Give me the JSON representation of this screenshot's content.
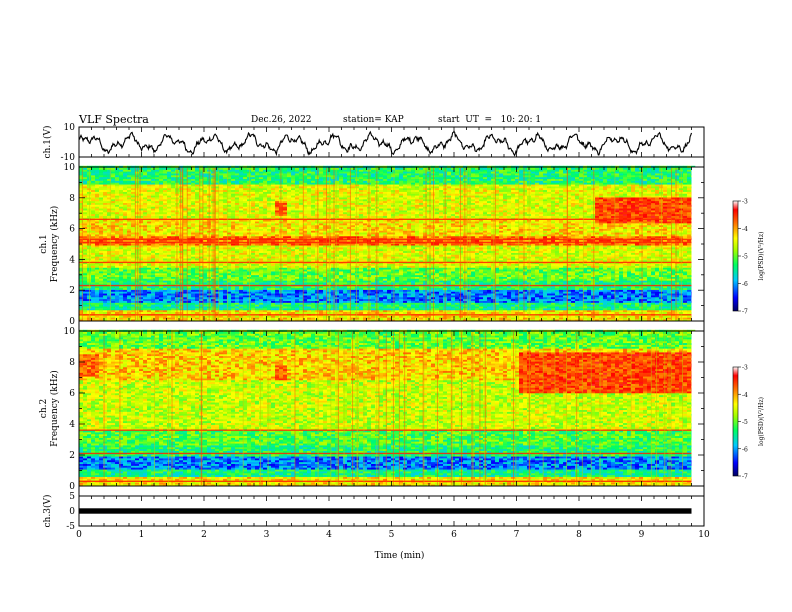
{
  "header": {
    "title": "VLF Spectra",
    "date": "Dec.26, 2022",
    "station": "station= KAP",
    "start_ut": "start  UT  =   10: 20: 1"
  },
  "chart_data": [
    {
      "type": "line",
      "name": "ch1-waveform",
      "ylabel": "ch.1(V)",
      "ylim": [
        -10,
        10
      ],
      "yticks": [
        "10",
        "-10"
      ],
      "xlim": [
        0,
        10
      ],
      "x_max_data": 9.8,
      "description_levels": "oscillating waveform between about -7 and 7 V",
      "color": "#000000"
    },
    {
      "type": "heatmap",
      "name": "ch1-spectrogram",
      "ylabel": "ch.1\nFrequency (kHz)",
      "ylabel_line1": "ch.1",
      "ylabel_line2": "Frequency (kHz)",
      "ylim": [
        0,
        10
      ],
      "yticks": [
        "0",
        "2",
        "4",
        "6",
        "8",
        "10"
      ],
      "xlim": [
        0,
        10
      ],
      "x_max_data": 9.8,
      "bands": [
        {
          "f_from": 0.0,
          "f_to": 0.7,
          "level": -4.3
        },
        {
          "f_from": 0.7,
          "f_to": 1.2,
          "level": -5.4
        },
        {
          "f_from": 1.2,
          "f_to": 2.0,
          "level": -6.1
        },
        {
          "f_from": 2.0,
          "f_to": 2.6,
          "level": -5.3
        },
        {
          "f_from": 2.6,
          "f_to": 3.4,
          "level": -5.0
        },
        {
          "f_from": 3.4,
          "f_to": 4.9,
          "level": -4.5
        },
        {
          "f_from": 4.9,
          "f_to": 5.5,
          "level": -3.8
        },
        {
          "f_from": 5.5,
          "f_to": 6.5,
          "level": -4.3
        },
        {
          "f_from": 6.5,
          "f_to": 8.8,
          "level": -4.5
        },
        {
          "f_from": 8.8,
          "f_to": 10.0,
          "level": -5.3
        }
      ],
      "lines_khz": [
        5.1,
        5.3,
        3.8,
        6.6,
        2.3,
        0.4
      ],
      "hotspots": [
        {
          "t_from": 8.2,
          "t_to": 9.8,
          "f_from": 6.3,
          "f_to": 8.0,
          "level": -3.6
        },
        {
          "t_from": 3.1,
          "t_to": 3.3,
          "f_from": 6.8,
          "f_to": 7.8,
          "level": -3.8
        }
      ],
      "colorbar": {
        "label": "log(PSD)(V²/Hz)",
        "range": [
          -7,
          -3
        ],
        "ticks": [
          "-3",
          "-4",
          "-5",
          "-6",
          "-7"
        ],
        "colors": [
          "#000080",
          "#0000ff",
          "#00bfff",
          "#00ff80",
          "#80ff00",
          "#ffff00",
          "#ff8000",
          "#ff0000",
          "#ffffff"
        ]
      }
    },
    {
      "type": "heatmap",
      "name": "ch2-spectrogram",
      "ylabel_line1": "ch.2",
      "ylabel_line2": "Frequency (kHz)",
      "ylim": [
        0,
        10
      ],
      "yticks": [
        "0",
        "2",
        "4",
        "6",
        "8",
        "10"
      ],
      "xlim": [
        0,
        10
      ],
      "x_max_data": 9.8,
      "bands": [
        {
          "f_from": 0.0,
          "f_to": 0.6,
          "level": -4.3
        },
        {
          "f_from": 0.6,
          "f_to": 1.0,
          "level": -5.4
        },
        {
          "f_from": 1.0,
          "f_to": 1.9,
          "level": -6.1
        },
        {
          "f_from": 1.9,
          "f_to": 2.6,
          "level": -5.3
        },
        {
          "f_from": 2.6,
          "f_to": 3.6,
          "level": -5.1
        },
        {
          "f_from": 3.6,
          "f_to": 6.8,
          "level": -4.6
        },
        {
          "f_from": 6.8,
          "f_to": 8.8,
          "level": -4.2
        },
        {
          "f_from": 8.8,
          "f_to": 10.0,
          "level": -5.0
        }
      ],
      "lines_khz": [
        3.6,
        2.1,
        0.3
      ],
      "hotspots": [
        {
          "t_from": 7.0,
          "t_to": 9.8,
          "f_from": 6.0,
          "f_to": 8.6,
          "level": -3.6
        },
        {
          "t_from": 3.1,
          "t_to": 3.3,
          "f_from": 6.8,
          "f_to": 7.8,
          "level": -3.8
        },
        {
          "t_from": 0.0,
          "t_to": 0.3,
          "f_from": 7.0,
          "f_to": 8.5,
          "level": -3.8
        }
      ],
      "colorbar": {
        "label": "log(PSD)(V²/Hz)",
        "range": [
          -7,
          -3
        ],
        "ticks": [
          "-3",
          "-4",
          "-5",
          "-6",
          "-7"
        ]
      }
    },
    {
      "type": "line",
      "name": "ch3-waveform",
      "ylabel": "ch.3(V)",
      "ylim": [
        -5,
        5
      ],
      "yticks": [
        "5",
        "0",
        "-5"
      ],
      "xlim": [
        0,
        10
      ],
      "x_max_data": 9.8,
      "description_levels": "flat dense band near 0 V",
      "color": "#000000"
    }
  ],
  "xaxis": {
    "label": "Time  (min)",
    "ticks": [
      "0",
      "1",
      "2",
      "3",
      "4",
      "5",
      "6",
      "7",
      "8",
      "9",
      "10"
    ]
  }
}
